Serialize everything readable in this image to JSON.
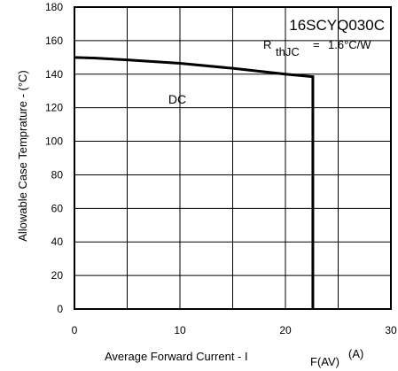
{
  "chart_data": {
    "type": "line",
    "part_number": "16SCYQ030C",
    "rth": {
      "symbol": "R",
      "subscript": "thJC",
      "equals": "=",
      "value": "1.6°C/W"
    },
    "xlabel": "Average Forward Current  - I",
    "xlabel_sub": "F(AV)",
    "xlabel_unit": "(A)",
    "ylabel": "Allowable Case Temprature - (°C)",
    "xlim": [
      0,
      30
    ],
    "ylim": [
      0,
      180
    ],
    "x_ticks": [
      0,
      10,
      20,
      30
    ],
    "y_ticks": [
      0,
      20,
      40,
      60,
      80,
      100,
      120,
      140,
      160,
      180
    ],
    "x_tick_labels": [
      "0",
      "10",
      "20",
      "30"
    ],
    "y_tick_labels": [
      "0",
      "20",
      "40",
      "60",
      "80",
      "100",
      "120",
      "140",
      "160",
      "180"
    ],
    "x_grid_step": 5,
    "y_grid_step": 20,
    "grid": true,
    "series": [
      {
        "label": "DC",
        "label_at": [
          10,
          125
        ],
        "x": [
          0,
          2,
          5,
          10,
          15,
          20,
          22.6,
          22.6
        ],
        "y": [
          150,
          149.6,
          148.5,
          146.5,
          143.5,
          140,
          138.5,
          0
        ]
      }
    ],
    "colors": {
      "line": "#000000",
      "grid": "#000000",
      "background": "#ffffff"
    }
  }
}
